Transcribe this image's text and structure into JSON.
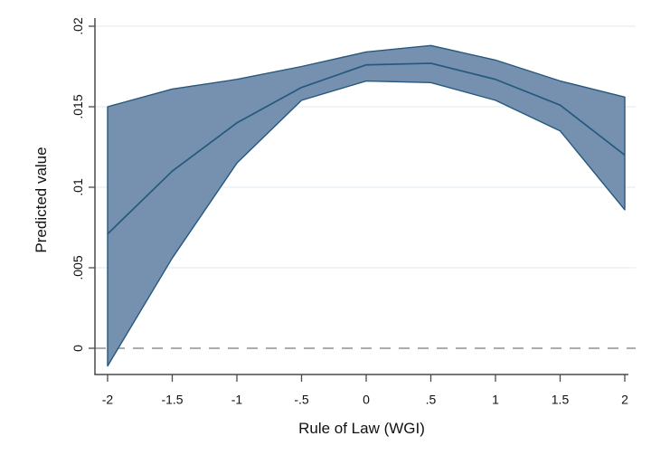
{
  "chart_data": {
    "type": "line",
    "title": "",
    "xlabel": "Rule of Law (WGI)",
    "ylabel": "Predicted value",
    "x": [
      -2,
      -1.5,
      -1,
      -0.5,
      0,
      0.5,
      1,
      1.5,
      2
    ],
    "series": [
      {
        "name": "predicted",
        "values": [
          0.0071,
          0.011,
          0.014,
          0.0162,
          0.0176,
          0.0177,
          0.0167,
          0.0151,
          0.012
        ]
      },
      {
        "name": "ci_upper",
        "values": [
          0.015,
          0.0161,
          0.0167,
          0.0175,
          0.0184,
          0.0188,
          0.0179,
          0.0166,
          0.0156
        ]
      },
      {
        "name": "ci_lower",
        "values": [
          -0.0011,
          0.0056,
          0.0115,
          0.0154,
          0.0166,
          0.0165,
          0.0154,
          0.0135,
          0.0086
        ]
      }
    ],
    "x_ticks": {
      "values": [
        -2,
        -1.5,
        -1,
        -0.5,
        0,
        0.5,
        1,
        1.5,
        2
      ],
      "labels": [
        "-2",
        "-1.5",
        "-1",
        "-.5",
        "0",
        ".5",
        "1",
        "1.5",
        "2"
      ]
    },
    "y_ticks": {
      "values": [
        0,
        0.005,
        0.01,
        0.015,
        0.02
      ],
      "labels": [
        "0",
        ".005",
        ".01",
        ".015",
        ".02"
      ]
    },
    "xlim": [
      -2,
      2
    ],
    "ylim": [
      -0.0015,
      0.02
    ],
    "grid": true,
    "legend": "none",
    "reference_line": {
      "value": 0,
      "style": "dashed"
    },
    "colors": {
      "band_fill": "#7591af",
      "band_edge": "#26587e",
      "line": "#26587e",
      "grid": "#e3edf2",
      "zero_line": "#909090",
      "axis": "#4a4a4a",
      "text": "#111111"
    }
  }
}
